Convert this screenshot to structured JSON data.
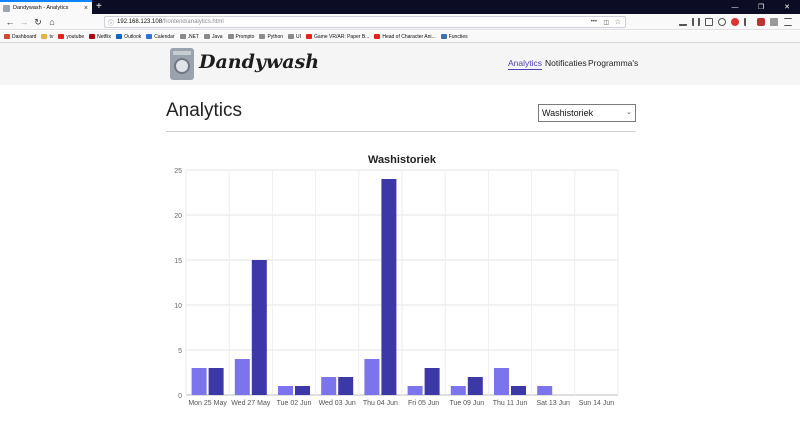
{
  "browser": {
    "tab_title": "Dandywash - Analytics",
    "new_tab": "+",
    "url_host": "192.168.123.108",
    "url_path": "/frontend/analytics.html",
    "window_controls": [
      "—",
      "❐",
      "✕"
    ],
    "bookmarks": [
      {
        "label": "Dashboard",
        "color": "#d04b2f"
      },
      {
        "label": "tv",
        "color": "#e3b341"
      },
      {
        "label": "youtube",
        "color": "#e62117"
      },
      {
        "label": "Netflix",
        "color": "#b20710"
      },
      {
        "label": "Outlook",
        "color": "#0a64c2"
      },
      {
        "label": "Calendar",
        "color": "#2b73d6"
      },
      {
        "label": ".NET",
        "color": "#8a8a8a"
      },
      {
        "label": "Java",
        "color": "#8a8a8a"
      },
      {
        "label": "Prompto",
        "color": "#8a8a8a"
      },
      {
        "label": "Python",
        "color": "#8a8a8a"
      },
      {
        "label": "UI",
        "color": "#8a8a8a"
      },
      {
        "label": "Game VR/AR: Paper B...",
        "color": "#e62117"
      },
      {
        "label": "Head of Character Ani...",
        "color": "#e62117"
      },
      {
        "label": "Functies",
        "color": "#3d6fb6"
      }
    ]
  },
  "header": {
    "brand": "Dandywash",
    "nav": [
      "Analytics",
      "Notificaties",
      "Programma's"
    ]
  },
  "main": {
    "title": "Analytics",
    "select_value": "Washistoriek"
  },
  "chart_data": {
    "type": "bar",
    "title": "Washistoriek",
    "categories": [
      "Mon 25 May",
      "Wed 27 May",
      "Tue 02 Jun",
      "Wed 03 Jun",
      "Thu 04 Jun",
      "Fri 05 Jun",
      "Tue 09 Jun",
      "Thu 11 Jun",
      "Sat 13 Jun",
      "Sun 14 Jun"
    ],
    "series": [
      {
        "color": "#7b74ec",
        "values": [
          3,
          4,
          1,
          2,
          4,
          1,
          1,
          3,
          1,
          0
        ]
      },
      {
        "color": "#3d38a8",
        "values": [
          3,
          15,
          1,
          2,
          24,
          3,
          2,
          1,
          0,
          0
        ]
      }
    ],
    "ylim": [
      0,
      25
    ],
    "yticks": [
      0,
      5,
      10,
      15,
      20,
      25
    ],
    "grid": true
  }
}
